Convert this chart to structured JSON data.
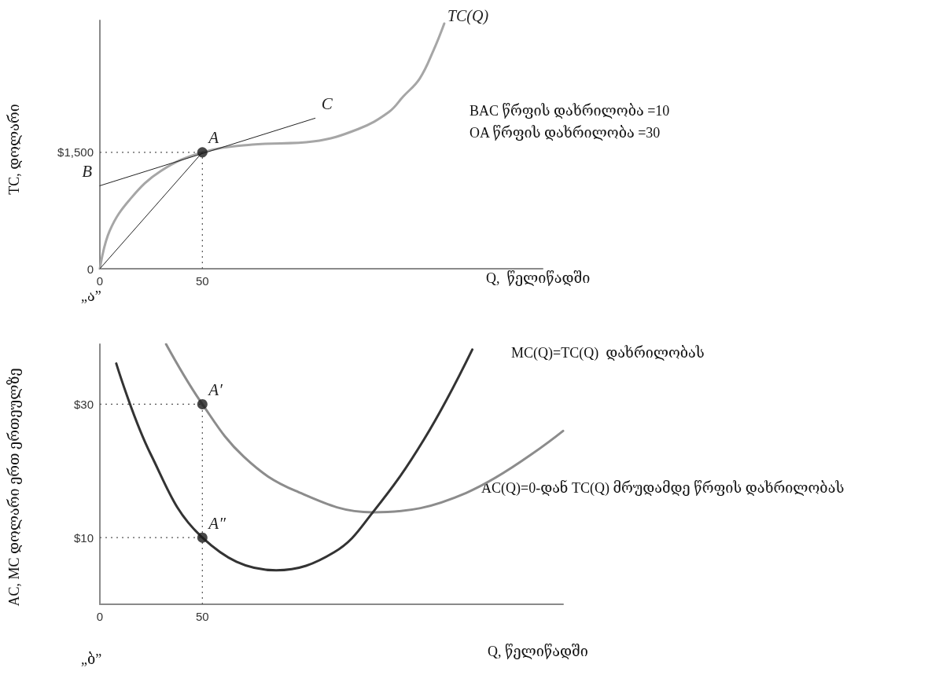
{
  "chart_data": [
    {
      "type": "line",
      "xlabel": "Q,  წელიწადში",
      "ylabel": "TC, დოლარი",
      "xlim": [
        0,
        216
      ],
      "ylim": [
        0,
        3200
      ],
      "xticks": [
        {
          "value": 0,
          "label": "0"
        },
        50
      ],
      "yticks": [
        {
          "value": 0,
          "label": "0"
        },
        {
          "value": 1500,
          "label": "$1,500"
        }
      ],
      "grid": false,
      "marker": "none",
      "series": [
        {
          "name": "TC(Q)",
          "color": "#a6a6a6",
          "x": [
            0,
            4.8,
            15.2,
            29.8,
            50,
            74.3,
            104,
            126,
            141,
            148,
            156,
            163,
            168
          ],
          "values": [
            0,
            490,
            910,
            1260,
            1500,
            1600,
            1640,
            1800,
            2020,
            2220,
            2450,
            2830,
            3160
          ]
        },
        {
          "color": "#222222",
          "x": [
            0,
            105
          ],
          "values": [
            1070,
            1940
          ]
        },
        {
          "color": "#222222",
          "x": [
            0,
            50
          ],
          "values": [
            0,
            1500
          ]
        },
        {
          "type": "scatter",
          "marker": "circle",
          "color": "#1a1a1a",
          "x": [
            50
          ],
          "values": [
            1500
          ]
        }
      ],
      "ref_lines": [
        {
          "axis": "x",
          "value": 50,
          "color": "#555555",
          "line_style": "dotted"
        },
        {
          "axis": "y",
          "value": 1500,
          "color": "#555555",
          "line_style": "dotted"
        }
      ],
      "annotations": [
        {
          "text": "A",
          "x": 50,
          "y": 1500
        },
        {
          "text": "B",
          "x": 0,
          "y": 1066
        },
        {
          "text": "C",
          "x": 105,
          "y": 1940
        },
        "BAC წრფის დახრილობა =10",
        "OA წრფის დახრილობა =30",
        "„ა”"
      ]
    },
    {
      "type": "line",
      "xlabel": "Q, წელიწადში",
      "ylabel": "AC, MC დოლარი ერთ ერთეულზე",
      "xlim": [
        0,
        226
      ],
      "ylim": [
        0,
        39
      ],
      "xticks": [
        {
          "value": 0,
          "label": "0"
        },
        50
      ],
      "yticks": [
        {
          "value": 10,
          "label": "$10"
        },
        {
          "value": 30,
          "label": "$30"
        }
      ],
      "grid": false,
      "marker": "none",
      "series": [
        {
          "color": "#8c8c8c",
          "x": [
            32.3,
            50,
            70.3,
            95.5,
            133.2,
            178.7,
            226
          ],
          "values": [
            39,
            30,
            22.1,
            17,
            13.8,
            16.7,
            26
          ]
        },
        {
          "color": "#333333",
          "x": [
            8,
            24.8,
            50,
            86,
            114.3,
            133.2,
            158.3,
            181.7
          ],
          "values": [
            36.1,
            22.5,
            10,
            5.1,
            7.8,
            13.8,
            24.8,
            38.2
          ]
        },
        {
          "type": "scatter",
          "marker": "circle",
          "color": "#1a1a1a",
          "x": [
            50,
            50
          ],
          "values": [
            30,
            10
          ]
        }
      ],
      "ref_lines": [
        {
          "axis": "x",
          "value": 50,
          "color": "#555555",
          "line_style": "dotted"
        },
        {
          "axis": "y",
          "value": 30,
          "color": "#555555",
          "line_style": "dotted"
        },
        {
          "axis": "y",
          "value": 10,
          "color": "#555555",
          "line_style": "dotted"
        }
      ],
      "annotations": [
        {
          "text": "A′",
          "x": 50,
          "y": 30
        },
        {
          "text": "A″",
          "x": 50,
          "y": 10
        },
        "MC(Q)=TC(Q)  დახრილობას",
        "AC(Q)=0-დან TC(Q) მრუდამდე წრფის დახრილობას",
        "„ბ”"
      ]
    }
  ]
}
